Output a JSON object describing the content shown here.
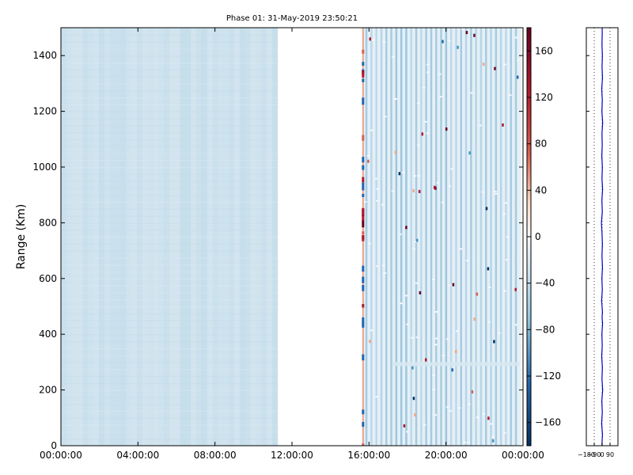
{
  "chart_data": [
    {
      "type": "heatmap",
      "title": "Phase 01: 31-May-2019 23:50:21",
      "ylabel": "Range (Km)",
      "xlabel": "",
      "x_tick_labels": [
        "00:00:00",
        "04:00:00",
        "08:00:00",
        "12:00:00",
        "16:00:00",
        "20:00:00",
        "00:00:00"
      ],
      "x_tick_hours": [
        0,
        4,
        8,
        12,
        16,
        20,
        24
      ],
      "xlim_hours": [
        0,
        24
      ],
      "y_ticks": [
        0,
        200,
        400,
        600,
        800,
        1000,
        1200,
        1400
      ],
      "ylim": [
        0,
        1500
      ],
      "data_segments": [
        {
          "start_hour": 0.0,
          "end_hour": 11.25,
          "pattern": "uniform",
          "approx_value": -70
        },
        {
          "start_hour": 15.65,
          "end_hour": 23.9,
          "pattern": "striped",
          "approx_value": -60
        }
      ],
      "gap_hours": [
        11.25,
        15.65
      ],
      "colormap": "RdBu_r",
      "colorbar": {
        "ticks": [
          160,
          120,
          80,
          40,
          0,
          -40,
          -80,
          -120,
          -160
        ],
        "range": [
          -180,
          180
        ]
      },
      "colors": {
        "dark_red": "#67001f",
        "white": "#f7f7f7",
        "dark_blue": "#053061"
      }
    },
    {
      "type": "line",
      "x_tick_labels": [
        "−180",
        "−90",
        "0",
        "90"
      ],
      "x_ticks": [
        -180,
        -90,
        0,
        90
      ],
      "xlim": [
        -180,
        180
      ],
      "ylim": [
        0,
        1500
      ],
      "y_ticks": [
        0,
        200,
        400,
        600,
        800,
        1000,
        1200,
        1400
      ],
      "grid": "vertical-dotted",
      "line_color": "#0000cc",
      "profile": [
        [
          -3,
          0
        ],
        [
          4,
          40
        ],
        [
          -6,
          80
        ],
        [
          2,
          120
        ],
        [
          -4,
          160
        ],
        [
          6,
          200
        ],
        [
          -2,
          240
        ],
        [
          3,
          280
        ],
        [
          -5,
          320
        ],
        [
          1,
          360
        ],
        [
          -3,
          400
        ],
        [
          5,
          440
        ],
        [
          -1,
          460
        ],
        [
          4,
          480
        ],
        [
          -6,
          520
        ],
        [
          2,
          560
        ],
        [
          -3,
          600
        ],
        [
          4,
          640
        ],
        [
          -2,
          680
        ],
        [
          3,
          720
        ],
        [
          -1,
          760
        ],
        [
          -8,
          800
        ],
        [
          2,
          840
        ],
        [
          -3,
          880
        ],
        [
          5,
          920
        ],
        [
          -2,
          960
        ],
        [
          3,
          1000
        ],
        [
          -4,
          1040
        ],
        [
          1,
          1080
        ],
        [
          -2,
          1120
        ],
        [
          6,
          1160
        ],
        [
          -3,
          1200
        ],
        [
          2,
          1240
        ],
        [
          -5,
          1280
        ],
        [
          4,
          1320
        ],
        [
          -1,
          1360
        ],
        [
          3,
          1400
        ],
        [
          -2,
          1440
        ],
        [
          1,
          1480
        ],
        [
          0,
          1500
        ]
      ]
    }
  ]
}
